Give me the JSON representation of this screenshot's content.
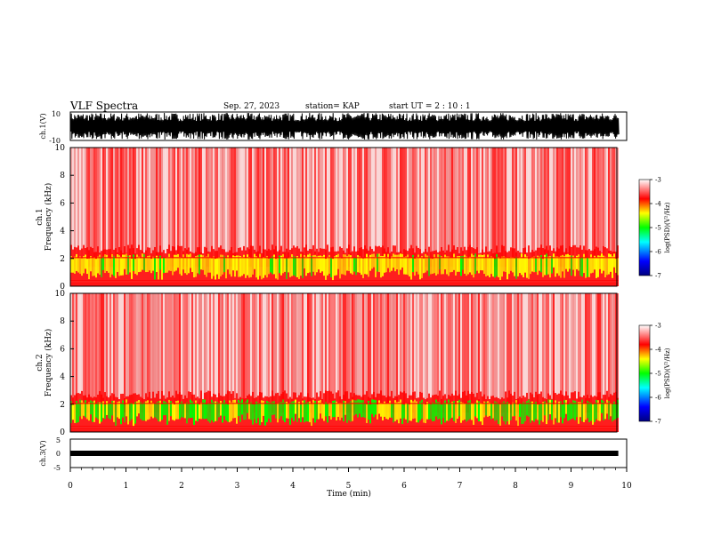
{
  "header": {
    "title": "VLF Spectra",
    "date": "Sep. 27, 2023",
    "station": "station= KAP",
    "start": "start  UT =   2 : 10 : 1"
  },
  "chart_data": [
    {
      "type": "line",
      "ylabel": "ch.1(V)",
      "ylim": [
        -10,
        10
      ],
      "y_tick_labels": [
        "-10",
        "10"
      ],
      "xlim": [
        0,
        10
      ],
      "description_visible": "dense waveform spanning nearly full range"
    },
    {
      "type": "heatmap",
      "ylabel_line1": "ch.1",
      "ylabel_line2": "Frequency  (kHz)",
      "ylim": [
        0,
        10
      ],
      "y_tick_labels": [
        "0",
        "2",
        "4",
        "6",
        "8",
        "10"
      ],
      "xlim": [
        0,
        10
      ],
      "colorbar": {
        "label": "log(PSD)(V²/Hz)",
        "range": [
          -7,
          -3
        ],
        "tick_labels": [
          "-3",
          "-4",
          "-5",
          "-6",
          "-7"
        ]
      }
    },
    {
      "type": "heatmap",
      "ylabel_line1": "ch.2",
      "ylabel_line2": "Frequency  (kHz)",
      "ylim": [
        0,
        10
      ],
      "y_tick_labels": [
        "0",
        "2",
        "4",
        "6",
        "8",
        "10"
      ],
      "xlim": [
        0,
        10
      ],
      "colorbar": {
        "label": "log(PSD)(V²/Hz)",
        "range": [
          -7,
          -3
        ],
        "tick_labels": [
          "-3",
          "-4",
          "-5",
          "-6",
          "-7"
        ]
      }
    },
    {
      "type": "line",
      "ylabel": "ch.3(V)",
      "ylim": [
        -5,
        5
      ],
      "y_tick_labels": [
        "-5",
        "0",
        "5"
      ],
      "xlim": [
        0,
        10
      ],
      "xlabel": "Time  (min)",
      "x_tick_labels": [
        "0",
        "1",
        "2",
        "3",
        "4",
        "5",
        "6",
        "7",
        "8",
        "9",
        "10"
      ],
      "end_time_min": 9.85
    }
  ],
  "colors": {
    "spectrogram_bg": "#ffffff",
    "high": "#ff0000",
    "mid": "#ffff00",
    "low": "#00ff00",
    "lower": "#00ffff",
    "lowest": "#0000ff"
  }
}
